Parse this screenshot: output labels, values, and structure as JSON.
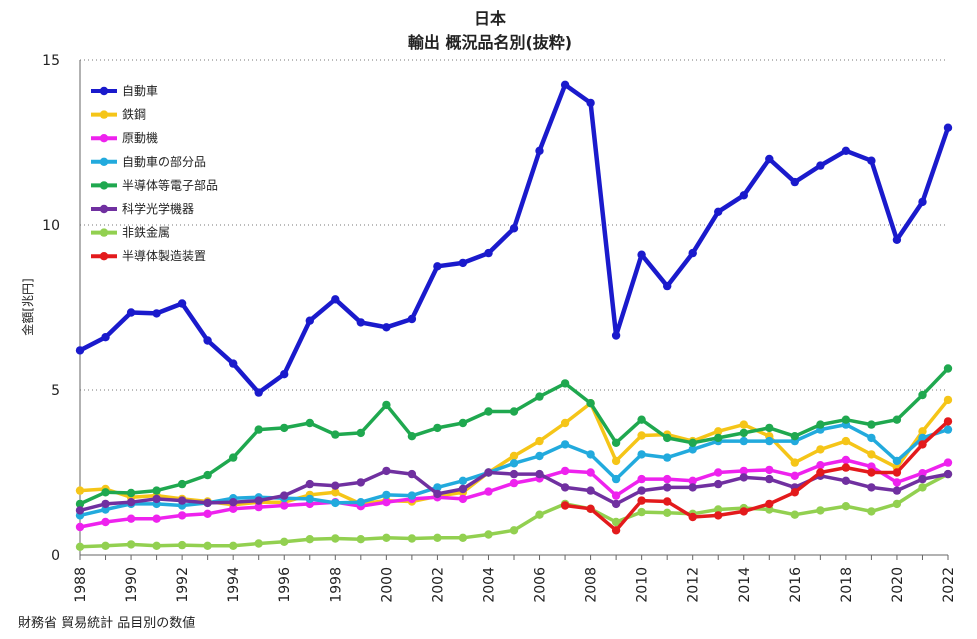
{
  "chart_data": {
    "type": "line",
    "title": "日本",
    "subtitle": "輸出 概況品名別(抜粋)",
    "xlabel": "",
    "ylabel": "金額[兆円]",
    "ylim": [
      0,
      15
    ],
    "yticks": [
      0,
      5,
      10,
      15
    ],
    "xlim": [
      1988,
      2022
    ],
    "xticks": [
      1988,
      1990,
      1992,
      1994,
      1996,
      1998,
      2000,
      2002,
      2004,
      2006,
      2008,
      2010,
      2012,
      2014,
      2016,
      2018,
      2020,
      2022
    ],
    "grid": "horizontal dotted",
    "legend_position": "top-left",
    "x": [
      1988,
      1989,
      1990,
      1991,
      1992,
      1993,
      1994,
      1995,
      1996,
      1997,
      1998,
      1999,
      2000,
      2001,
      2002,
      2003,
      2004,
      2005,
      2006,
      2007,
      2008,
      2009,
      2010,
      2011,
      2012,
      2013,
      2014,
      2015,
      2016,
      2017,
      2018,
      2019,
      2020,
      2021,
      2022
    ],
    "series": [
      {
        "name": "非鉄金属",
        "color": "#92d050",
        "values": [
          0.25,
          0.28,
          0.32,
          0.28,
          0.3,
          0.28,
          0.28,
          0.35,
          0.4,
          0.48,
          0.5,
          0.48,
          0.52,
          0.5,
          0.52,
          0.52,
          0.62,
          0.75,
          1.22,
          1.55,
          1.4,
          1.0,
          1.3,
          1.28,
          1.25,
          1.38,
          1.42,
          1.38,
          1.22,
          1.35,
          1.48,
          1.32,
          1.55,
          2.05,
          2.45
        ]
      },
      {
        "name": "鉄鋼",
        "color": "#f5c518",
        "values": [
          1.95,
          2.0,
          1.75,
          1.8,
          1.7,
          1.62,
          1.52,
          1.6,
          1.6,
          1.82,
          1.9,
          1.55,
          1.65,
          1.62,
          1.78,
          1.9,
          2.5,
          3.0,
          3.45,
          4.0,
          4.6,
          2.85,
          3.62,
          3.65,
          3.45,
          3.75,
          3.95,
          3.6,
          2.8,
          3.2,
          3.45,
          3.05,
          2.65,
          3.75,
          4.7
        ]
      },
      {
        "name": "原動機",
        "color": "#ee22ee",
        "values": [
          0.85,
          1.0,
          1.1,
          1.1,
          1.2,
          1.25,
          1.4,
          1.45,
          1.5,
          1.55,
          1.6,
          1.48,
          1.6,
          1.7,
          1.75,
          1.7,
          1.92,
          2.18,
          2.32,
          2.55,
          2.5,
          1.8,
          2.3,
          2.3,
          2.25,
          2.5,
          2.55,
          2.58,
          2.4,
          2.72,
          2.88,
          2.68,
          2.2,
          2.48,
          2.8
        ]
      },
      {
        "name": "自動車の部分品",
        "color": "#22aadd",
        "values": [
          1.2,
          1.38,
          1.55,
          1.55,
          1.5,
          1.58,
          1.72,
          1.75,
          1.72,
          1.7,
          1.58,
          1.6,
          1.82,
          1.8,
          2.05,
          2.25,
          2.5,
          2.78,
          3.0,
          3.35,
          3.05,
          2.3,
          3.05,
          2.95,
          3.2,
          3.45,
          3.45,
          3.45,
          3.45,
          3.8,
          3.95,
          3.55,
          2.85,
          3.55,
          3.8
        ]
      },
      {
        "name": "半導体等電子部品",
        "color": "#1fa84f",
        "values": [
          1.55,
          1.9,
          1.88,
          1.95,
          2.15,
          2.42,
          2.95,
          3.8,
          3.85,
          4.0,
          3.65,
          3.7,
          4.55,
          3.6,
          3.85,
          4.0,
          4.35,
          4.35,
          4.8,
          5.2,
          4.6,
          3.4,
          4.1,
          3.55,
          3.4,
          3.55,
          3.7,
          3.85,
          3.6,
          3.95,
          4.1,
          3.95,
          4.1,
          4.85,
          5.65
        ]
      },
      {
        "name": "科学光学機器",
        "color": "#7030a0",
        "values": [
          1.35,
          1.55,
          1.6,
          1.7,
          1.65,
          1.58,
          1.6,
          1.65,
          1.8,
          2.15,
          2.1,
          2.2,
          2.55,
          2.45,
          1.85,
          2.0,
          2.5,
          2.45,
          2.45,
          2.05,
          1.95,
          1.55,
          1.95,
          2.05,
          2.05,
          2.15,
          2.35,
          2.3,
          2.05,
          2.4,
          2.25,
          2.05,
          1.95,
          2.3,
          2.45
        ]
      },
      {
        "name": "半導体製造装置",
        "color": "#e31a1c",
        "values": [
          null,
          null,
          null,
          null,
          null,
          null,
          null,
          null,
          null,
          null,
          null,
          null,
          null,
          null,
          null,
          null,
          null,
          null,
          null,
          1.5,
          1.4,
          0.75,
          1.65,
          1.62,
          1.15,
          1.2,
          1.32,
          1.55,
          1.9,
          2.5,
          2.65,
          2.5,
          2.5,
          3.35,
          4.05
        ]
      },
      {
        "name": "自動車",
        "color": "#1a1acc",
        "values": [
          6.2,
          6.6,
          7.35,
          7.32,
          7.62,
          6.5,
          5.8,
          4.92,
          5.48,
          7.1,
          7.75,
          7.05,
          6.9,
          7.15,
          8.75,
          8.85,
          9.15,
          9.9,
          12.25,
          14.25,
          13.7,
          6.65,
          9.1,
          8.15,
          9.15,
          10.4,
          10.9,
          12.0,
          11.3,
          11.8,
          12.25,
          11.95,
          9.55,
          10.7,
          12.95
        ]
      }
    ],
    "legend_order": [
      "自動車",
      "鉄鋼",
      "原動機",
      "自動車の部分品",
      "半導体等電子部品",
      "科学光学機器",
      "非鉄金属",
      "半導体製造装置"
    ]
  },
  "source_note": "財務省 貿易統計 品目別の数値"
}
